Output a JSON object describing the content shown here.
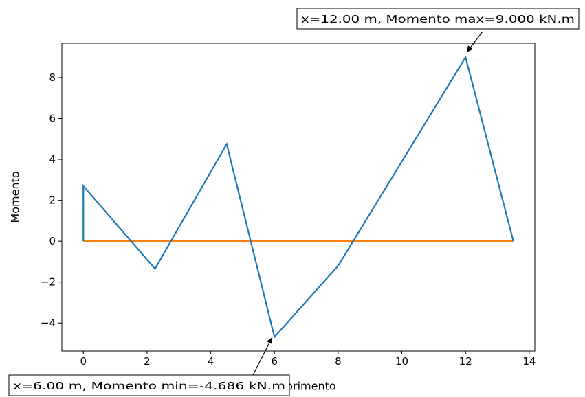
{
  "chart_data": {
    "type": "line",
    "title": "",
    "xlabel": "Comprimento",
    "ylabel": "Momento",
    "xlim": [
      -0.675,
      14.175
    ],
    "ylim": [
      -5.37,
      9.68
    ],
    "xticks": [
      0,
      2,
      4,
      6,
      8,
      10,
      12,
      14
    ],
    "xtick_labels": [
      "0",
      "2",
      "4",
      "6",
      "8",
      "10",
      "12",
      "14"
    ],
    "yticks": [
      -4,
      -2,
      0,
      2,
      4,
      6,
      8
    ],
    "ytick_labels": [
      "−4",
      "−2",
      "0",
      "2",
      "4",
      "6",
      "8"
    ],
    "grid": false,
    "series": [
      {
        "color": "#1f77b4",
        "x": [
          0,
          0,
          2.25,
          4.5,
          6,
          8,
          12,
          13.5
        ],
        "y": [
          0,
          2.7,
          -1.35,
          4.75,
          -4.686,
          -1.2,
          9.0,
          0
        ]
      },
      {
        "color": "#ff7f0e",
        "x": [
          0,
          13.5
        ],
        "y": [
          0,
          0
        ]
      }
    ],
    "annotations": [
      {
        "text": "x=12.00 m, Momento max=9.000 kN.m",
        "x": 12,
        "y": 9.0
      },
      {
        "text": "x=6.00 m, Momento min=-4.686 kN.m",
        "x": 6,
        "y": -4.686
      }
    ]
  }
}
